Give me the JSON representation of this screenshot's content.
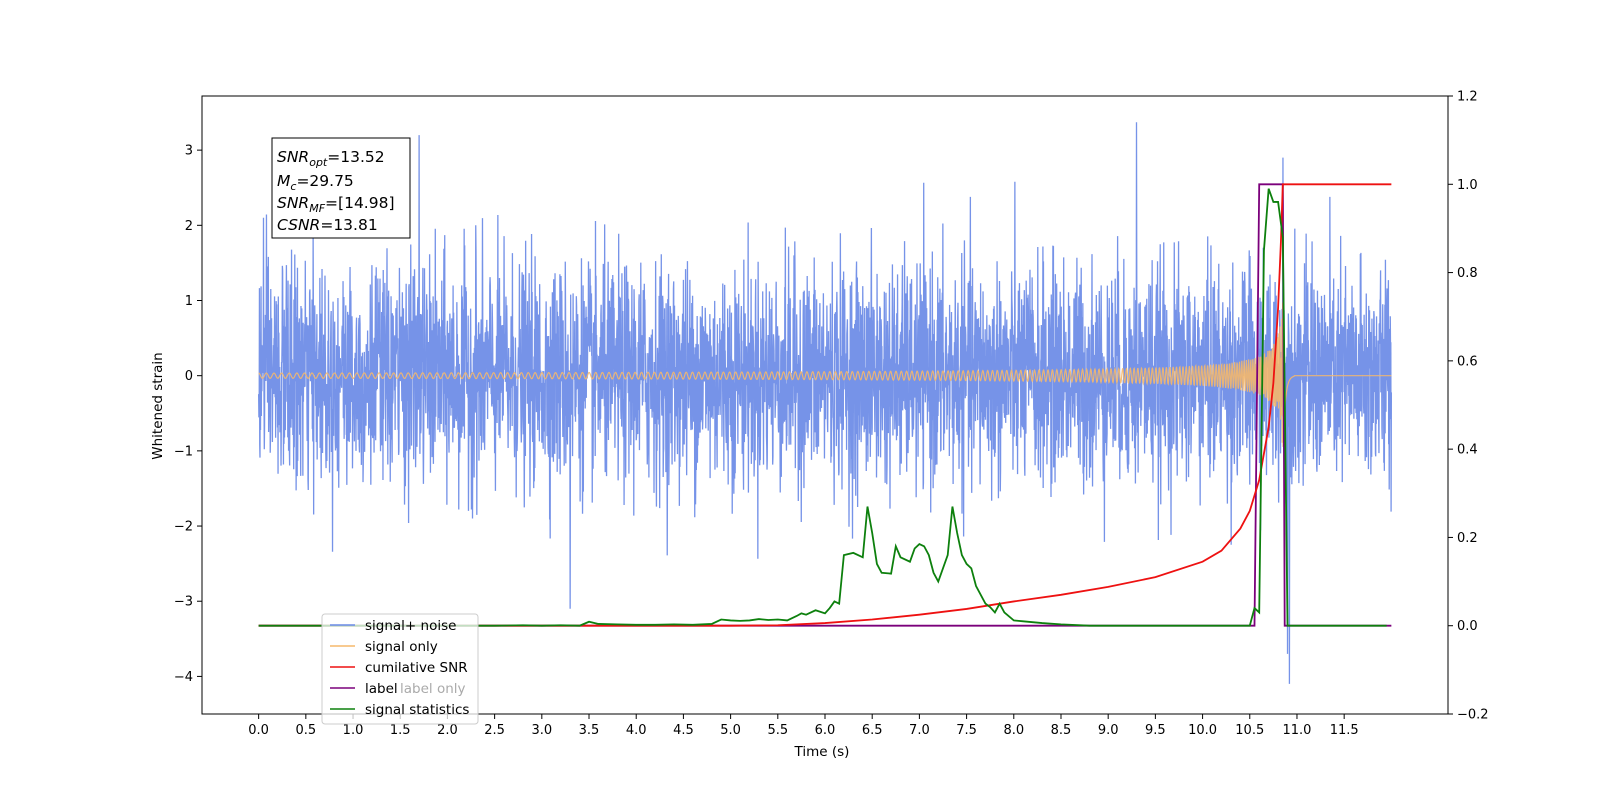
{
  "chart_data": {
    "type": "line",
    "xlabel": "Time (s)",
    "ylabel": "Whitened strain",
    "xlim": [
      -0.6,
      12.6
    ],
    "ylim": [
      -4.5,
      3.72
    ],
    "y2lim": [
      -0.2,
      1.2
    ],
    "xticks": [
      "0.0",
      "0.5",
      "1.0",
      "1.5",
      "2.0",
      "2.5",
      "3.0",
      "3.5",
      "4.0",
      "4.5",
      "5.0",
      "5.5",
      "6.0",
      "6.5",
      "7.0",
      "7.5",
      "8.0",
      "8.5",
      "9.0",
      "9.5",
      "10.0",
      "10.5",
      "11.0",
      "11.5"
    ],
    "yticks": [
      "3",
      "2",
      "1",
      "0",
      "−1",
      "−2",
      "−3",
      "−4"
    ],
    "y2ticks": [
      "1.2",
      "1.0",
      "0.8",
      "0.6",
      "0.4",
      "0.2",
      "0.0",
      "−0.2"
    ],
    "annotation": {
      "line1_sym": "SNR",
      "line1_sub": "opt",
      "line1_val": "=13.52",
      "line2_sym": "M",
      "line2_sub": "c",
      "line2_val": "=29.75",
      "line3_sym": "SNR",
      "line3_sub": "MF",
      "line3_val": "=[14.98]",
      "line4_sym": "CSNR",
      "line4_val": "=13.81"
    },
    "legend": {
      "position": "lower-left",
      "entries": [
        "signal+ noise",
        "signal only",
        "cumilative SNR",
        "label",
        "label only",
        "signal statistics"
      ]
    },
    "series": [
      {
        "name": "signal+ noise",
        "axis": "left",
        "color": "#6a8ae6",
        "note": "white noise, amplitude ~1.6 peaking 3.4",
        "x_range": [
          0.0,
          12.0
        ],
        "spikes": [
          [
            1.7,
            3.2
          ],
          [
            9.3,
            3.37
          ],
          [
            10.85,
            2.9
          ],
          [
            10.92,
            -4.1
          ],
          [
            10.9,
            -3.7
          ],
          [
            3.3,
            -3.1
          ],
          [
            0.05,
            2.1
          ],
          [
            2.3,
            2.0
          ]
        ]
      },
      {
        "name": "signal only",
        "axis": "left",
        "color": "#f5b86b",
        "chirp": {
          "start": 0.0,
          "merger": 10.85,
          "end": 12.0,
          "peak_amplitude": 1.1
        }
      },
      {
        "name": "cumilative SNR",
        "axis": "right",
        "color": "#ee1111",
        "x": [
          0.0,
          1.0,
          2.0,
          3.0,
          4.0,
          5.0,
          5.5,
          6.0,
          6.5,
          7.0,
          7.5,
          8.0,
          8.5,
          9.0,
          9.5,
          10.0,
          10.2,
          10.4,
          10.5,
          10.6,
          10.7,
          10.75,
          10.8,
          10.83,
          10.85,
          12.0
        ],
        "y": [
          0.0,
          0.0,
          0.0,
          0.0,
          0.0,
          0.0,
          0.001,
          0.006,
          0.014,
          0.025,
          0.038,
          0.055,
          0.07,
          0.088,
          0.11,
          0.145,
          0.17,
          0.22,
          0.26,
          0.33,
          0.45,
          0.55,
          0.72,
          0.87,
          1.0,
          1.0
        ]
      },
      {
        "name": "label",
        "axis": "right",
        "color": "#7b007b",
        "x": [
          0.0,
          10.55,
          10.6,
          10.85,
          10.87,
          12.0
        ],
        "y": [
          0.0,
          0.0,
          1.0,
          1.0,
          0.0,
          0.0
        ]
      },
      {
        "name": "signal statistics",
        "axis": "right",
        "color": "#0d800d",
        "x": [
          0.0,
          0.5,
          1.0,
          1.5,
          2.0,
          2.5,
          2.8,
          3.0,
          3.2,
          3.4,
          3.5,
          3.6,
          3.8,
          4.0,
          4.2,
          4.4,
          4.6,
          4.8,
          4.9,
          5.0,
          5.1,
          5.2,
          5.3,
          5.4,
          5.5,
          5.6,
          5.7,
          5.75,
          5.8,
          5.9,
          6.0,
          6.05,
          6.1,
          6.15,
          6.2,
          6.3,
          6.4,
          6.45,
          6.5,
          6.55,
          6.6,
          6.7,
          6.75,
          6.8,
          6.9,
          6.95,
          7.0,
          7.05,
          7.1,
          7.15,
          7.2,
          7.3,
          7.35,
          7.4,
          7.45,
          7.5,
          7.55,
          7.6,
          7.7,
          7.75,
          7.8,
          7.85,
          7.9,
          8.0,
          8.1,
          8.2,
          8.3,
          8.5,
          8.8,
          9.0,
          9.5,
          10.0,
          10.4,
          10.5,
          10.55,
          10.6,
          10.65,
          10.7,
          10.75,
          10.8,
          10.85,
          10.9,
          11.0,
          11.5,
          11.95
        ],
        "y": [
          0.0,
          0.0,
          0.0,
          0.0,
          0.0,
          0.0,
          0.001,
          0.0,
          0.001,
          0.0,
          0.009,
          0.004,
          0.003,
          0.002,
          0.002,
          0.003,
          0.002,
          0.004,
          0.014,
          0.012,
          0.011,
          0.012,
          0.015,
          0.013,
          0.014,
          0.012,
          0.022,
          0.028,
          0.025,
          0.035,
          0.028,
          0.04,
          0.055,
          0.05,
          0.16,
          0.165,
          0.155,
          0.27,
          0.21,
          0.14,
          0.12,
          0.118,
          0.18,
          0.155,
          0.145,
          0.175,
          0.185,
          0.18,
          0.16,
          0.12,
          0.1,
          0.16,
          0.27,
          0.21,
          0.16,
          0.14,
          0.13,
          0.09,
          0.05,
          0.042,
          0.03,
          0.05,
          0.03,
          0.012,
          0.01,
          0.008,
          0.006,
          0.003,
          0.0,
          0.0,
          0.0,
          0.0,
          0.0,
          0.0,
          0.04,
          0.03,
          0.85,
          0.99,
          0.96,
          0.96,
          0.88,
          0.0,
          0.0,
          0.0,
          0.0
        ]
      }
    ]
  }
}
